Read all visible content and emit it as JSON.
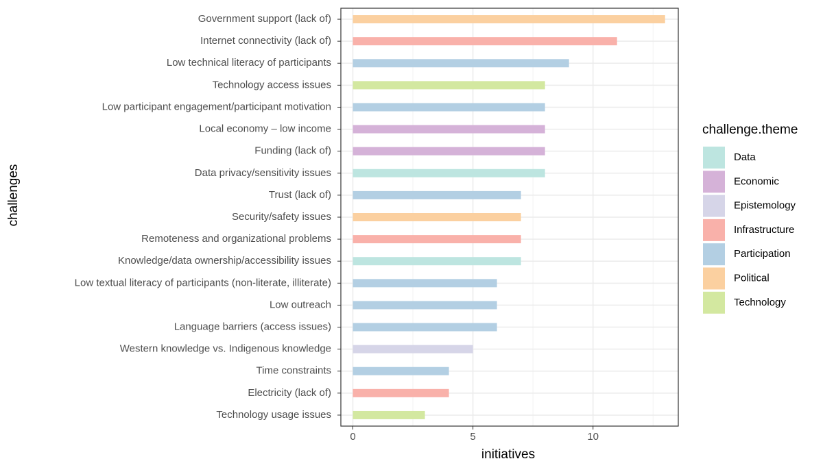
{
  "chart_data": {
    "type": "barh",
    "x_label": "initiatives",
    "y_label": "challenges",
    "legend_title": "challenge.theme",
    "categories": [
      "Government support (lack of)",
      "Internet connectivity (lack of)",
      "Low technical literacy of participants",
      "Technology access issues",
      "Low participant engagement/participant motivation",
      "Local economy – low income",
      "Funding (lack of)",
      "Data privacy/sensitivity issues",
      "Trust (lack of)",
      "Security/safety issues",
      "Remoteness and organizational problems",
      "Knowledge/data ownership/accessibility issues",
      "Low textual literacy of participants (non-literate, illiterate)",
      "Low outreach",
      "Language barriers (access issues)",
      "Western knowledge vs. Indigenous knowledge",
      "Time constraints",
      "Electricity (lack of)",
      "Technology usage issues"
    ],
    "series": [
      {
        "name": "Data",
        "color": "#bde5e0",
        "values": [
          null,
          null,
          null,
          null,
          null,
          null,
          null,
          8,
          null,
          null,
          null,
          7,
          null,
          null,
          null,
          null,
          null,
          null,
          null
        ]
      },
      {
        "name": "Economic",
        "color": "#d5b2d8",
        "values": [
          null,
          null,
          null,
          null,
          null,
          8,
          8,
          null,
          null,
          null,
          null,
          null,
          null,
          null,
          null,
          null,
          null,
          null,
          null
        ]
      },
      {
        "name": "Epistemology",
        "color": "#d6d5e8",
        "values": [
          null,
          null,
          null,
          null,
          null,
          null,
          null,
          null,
          null,
          null,
          null,
          null,
          null,
          null,
          null,
          5,
          null,
          null,
          null
        ]
      },
      {
        "name": "Infrastructure",
        "color": "#f9b1aa",
        "values": [
          null,
          11,
          null,
          null,
          null,
          null,
          null,
          null,
          null,
          null,
          7,
          null,
          null,
          null,
          null,
          null,
          null,
          4,
          null
        ]
      },
      {
        "name": "Participation",
        "color": "#b3cfe3",
        "values": [
          null,
          null,
          9,
          null,
          8,
          null,
          null,
          null,
          7,
          null,
          null,
          null,
          6,
          6,
          6,
          null,
          4,
          null,
          null
        ]
      },
      {
        "name": "Political",
        "color": "#fbd0a0",
        "values": [
          13,
          null,
          null,
          null,
          null,
          null,
          null,
          null,
          null,
          7,
          null,
          null,
          null,
          null,
          null,
          null,
          null,
          null,
          null
        ]
      },
      {
        "name": "Technology",
        "color": "#d3e8a0",
        "values": [
          null,
          null,
          null,
          8,
          null,
          null,
          null,
          null,
          null,
          null,
          null,
          null,
          null,
          null,
          null,
          null,
          null,
          null,
          3
        ]
      }
    ],
    "xlim": [
      -0.5,
      13.55
    ],
    "xticks": [
      0,
      5,
      10
    ],
    "minor_xticks": [
      2.5,
      7.5,
      12.5
    ],
    "grid": true,
    "legend": "right"
  }
}
